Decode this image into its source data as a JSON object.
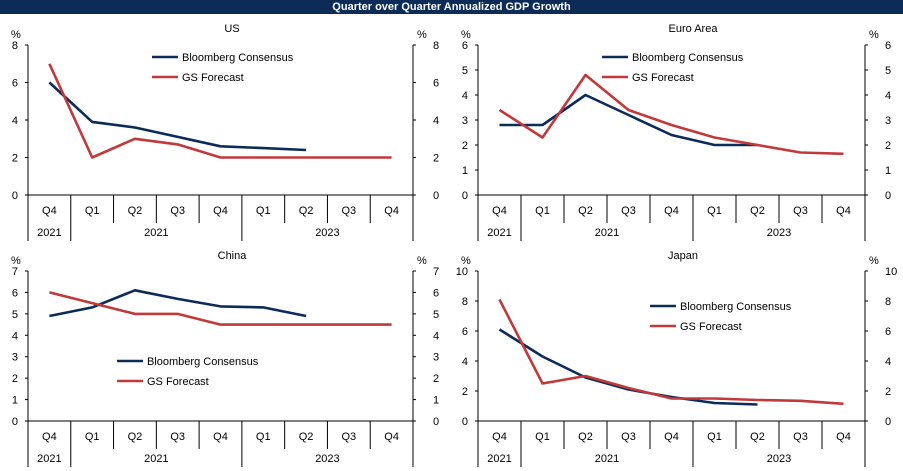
{
  "page_title": "Quarter over Quarter Annualized GDP Growth",
  "colors": {
    "consensus": "#0c2b57",
    "forecast": "#c0393b",
    "banner": "#0c2b57"
  },
  "chart_data": [
    {
      "type": "line",
      "title": "US",
      "ylabel": "%",
      "ylim": [
        0,
        8
      ],
      "yticks": [
        0,
        2,
        4,
        6,
        8
      ],
      "categories": [
        "Q4",
        "Q1",
        "Q2",
        "Q3",
        "Q4",
        "Q1",
        "Q2",
        "Q3",
        "Q4"
      ],
      "year_groups": [
        "2021",
        "2021",
        "2023"
      ],
      "legend_position": "top-center",
      "series": [
        {
          "name": "Bloomberg Consensus",
          "values": [
            6.0,
            3.9,
            3.6,
            3.1,
            2.6,
            2.5,
            2.4,
            null,
            null
          ]
        },
        {
          "name": "GS Forecast",
          "values": [
            7.0,
            2.0,
            3.0,
            2.7,
            2.0,
            2.0,
            2.0,
            2.0,
            2.0
          ]
        }
      ]
    },
    {
      "type": "line",
      "title": "Euro Area",
      "ylabel": "%",
      "ylim": [
        0,
        6
      ],
      "yticks": [
        0,
        1,
        2,
        3,
        4,
        5,
        6
      ],
      "categories": [
        "Q4",
        "Q1",
        "Q2",
        "Q3",
        "Q4",
        "Q1",
        "Q2",
        "Q3",
        "Q4"
      ],
      "year_groups": [
        "2021",
        "2021",
        "2023"
      ],
      "legend_position": "top-center",
      "series": [
        {
          "name": "Bloomberg Consensus",
          "values": [
            2.8,
            2.8,
            4.0,
            3.2,
            2.4,
            2.0,
            2.0,
            null,
            null
          ]
        },
        {
          "name": "GS Forecast",
          "values": [
            3.4,
            2.3,
            4.8,
            3.4,
            2.8,
            2.3,
            2.0,
            1.7,
            1.65
          ]
        }
      ]
    },
    {
      "type": "line",
      "title": "China",
      "ylabel": "%",
      "ylim": [
        0,
        7
      ],
      "yticks": [
        0,
        1,
        2,
        3,
        4,
        5,
        6,
        7
      ],
      "categories": [
        "Q4",
        "Q1",
        "Q2",
        "Q3",
        "Q4",
        "Q1",
        "Q2",
        "Q3",
        "Q4"
      ],
      "year_groups": [
        "2021",
        "2021",
        "2023"
      ],
      "legend_position": "bottom-center",
      "series": [
        {
          "name": "Bloomberg Consensus",
          "values": [
            4.9,
            5.3,
            6.1,
            5.7,
            5.35,
            5.3,
            4.9,
            null,
            null
          ]
        },
        {
          "name": "GS Forecast",
          "values": [
            6.0,
            5.5,
            5.0,
            5.0,
            4.5,
            4.5,
            4.5,
            4.5,
            4.5
          ]
        }
      ]
    },
    {
      "type": "line",
      "title": "Japan",
      "ylabel": "%",
      "ylim": [
        0,
        10
      ],
      "yticks": [
        0,
        2,
        4,
        6,
        8,
        10
      ],
      "categories": [
        "Q4",
        "Q1",
        "Q2",
        "Q3",
        "Q4",
        "Q1",
        "Q2",
        "Q3",
        "Q4"
      ],
      "year_groups": [
        "2021",
        "2021",
        "2023"
      ],
      "legend_position": "center-right",
      "series": [
        {
          "name": "Bloomberg Consensus",
          "values": [
            6.1,
            4.3,
            2.9,
            2.1,
            1.6,
            1.2,
            1.1,
            null,
            null
          ]
        },
        {
          "name": "GS Forecast",
          "values": [
            8.1,
            2.5,
            3.0,
            2.2,
            1.5,
            1.5,
            1.4,
            1.35,
            1.15
          ]
        }
      ]
    }
  ]
}
